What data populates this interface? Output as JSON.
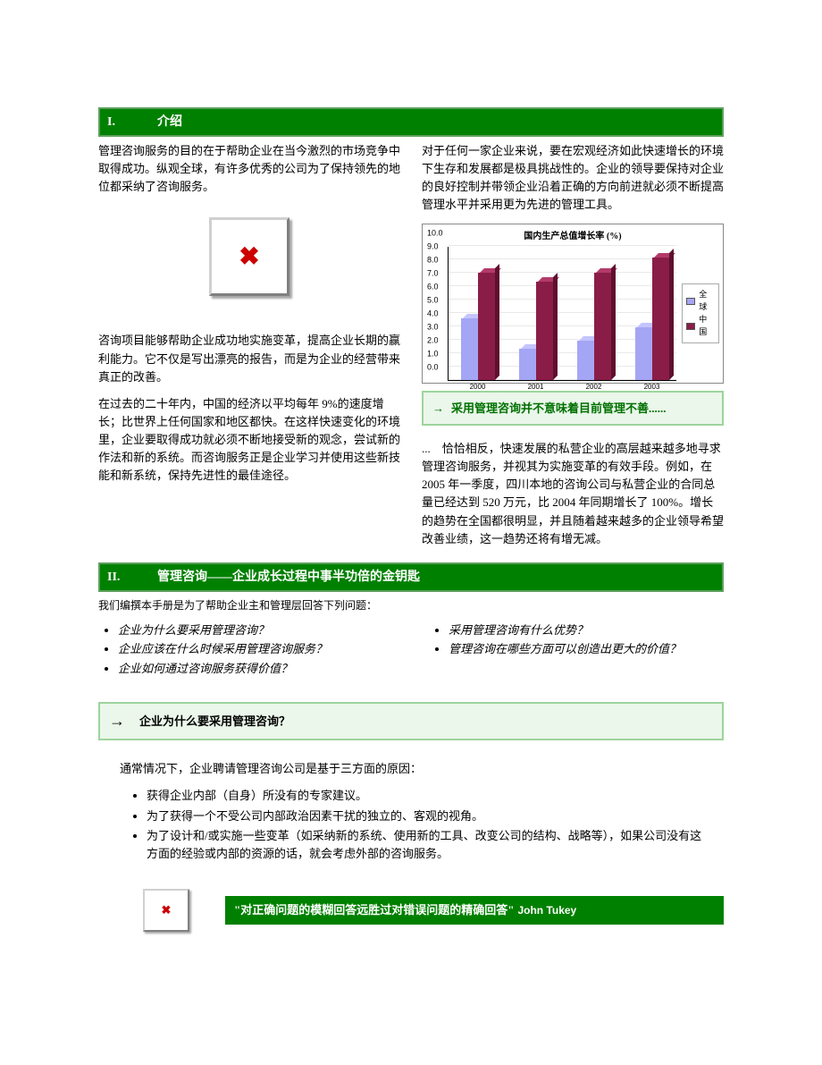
{
  "section1": {
    "num": "I.",
    "title": "介绍",
    "left": {
      "p1": "管理咨询服务的目的在于帮助企业在当今激烈的市场竞争中取得成功。纵观全球，有许多优秀的公司为了保持领先的地位都采纳了咨询服务。",
      "p2": "咨询项目能够帮助企业成功地实施变革，提高企业长期的赢利能力。它不仅是写出漂亮的报告，而是为企业的经营带来真正的改善。",
      "p3": "在过去的二十年内，中国的经济以平均每年 9%的速度增长；比世界上任何国家和地区都快。在这样快速变化的环境里，企业要取得成功就必须不断地接受新的观念，尝试新的作法和新的系统。而咨询服务正是企业学习并使用这些新技能和新系统，保持先进性的最佳途径。"
    },
    "right": {
      "p1": "对于任何一家企业来说，要在宏观经济如此快速增长的环境下生存和发展都是极具挑战性的。企业的领导要保持对企业的良好控制并带领企业沿着正确的方向前进就必须不断提高管理水平并采用更为先进的管理工具。",
      "callout": "采用管理咨询并不意味着目前管理不善......",
      "p2": "...　恰恰相反，快速发展的私营企业的高层越来越多地寻求管理咨询服务，并视其为实施变革的有效手段。例如，在 2005 年一季度，四川本地的咨询公司与私营企业的合同总量已经达到 520 万元，比 2004 年同期增长了 100%。增长的趋势在全国都很明显，并且随着越来越多的企业领导希望改善业绩，这一趋势还将有增无减。"
    }
  },
  "chart": {
    "title": "国内生产总值增长率  (%)",
    "series": [
      {
        "name": "全球",
        "color": "#a5a5f5",
        "top": "#c4c4ff",
        "side": "#7a7adb"
      },
      {
        "name": "中国",
        "color": "#8a1d47",
        "top": "#b33a6a",
        "side": "#5e0f2e"
      }
    ],
    "ylim": [
      0,
      10
    ],
    "ytick_step": 1,
    "categories": [
      "2000",
      "2001",
      "2002",
      "2003"
    ],
    "data": {
      "全球": [
        4.6,
        2.3,
        2.9,
        3.9
      ],
      "中国": [
        8.0,
        7.3,
        8.0,
        9.1
      ]
    },
    "bg": "#ffffff",
    "grid": "#e9e9e9"
  },
  "section2": {
    "num": "II.",
    "title": "管理咨询――企业成长过程中事半功倍的金钥匙",
    "intro": "我们编撰本手册是为了帮助企业主和管理层回答下列问题：",
    "left_qs": [
      "企业为什么要采用管理咨询？",
      "企业应该在什么时候采用管理咨询服务？",
      "企业如何通过咨询服务获得价值？"
    ],
    "right_qs": [
      "采用管理咨询有什么优势？",
      "管理咨询在哪些方面可以创造出更大的价值？"
    ],
    "question": "企业为什么要采用管理咨询？",
    "reasons_intro": "通常情况下，企业聘请管理咨询公司是基于三方面的原因：",
    "reasons": [
      "获得企业内部（自身）所没有的专家建议。",
      "为了获得一个不受公司内部政治因素干扰的独立的、客观的视角。",
      "为了设计和/或实施一些变革（如采纳新的系统、使用新的工具、改变公司的结构、战略等），如果公司没有这方面的经验或内部的资源的话，就会考虑外部的咨询服务。"
    ]
  },
  "quote": {
    "text": "\"对正确问题的模糊回答远胜过对错误问题的精确回答\"",
    "author": "John Tukey"
  },
  "arrow": "→"
}
